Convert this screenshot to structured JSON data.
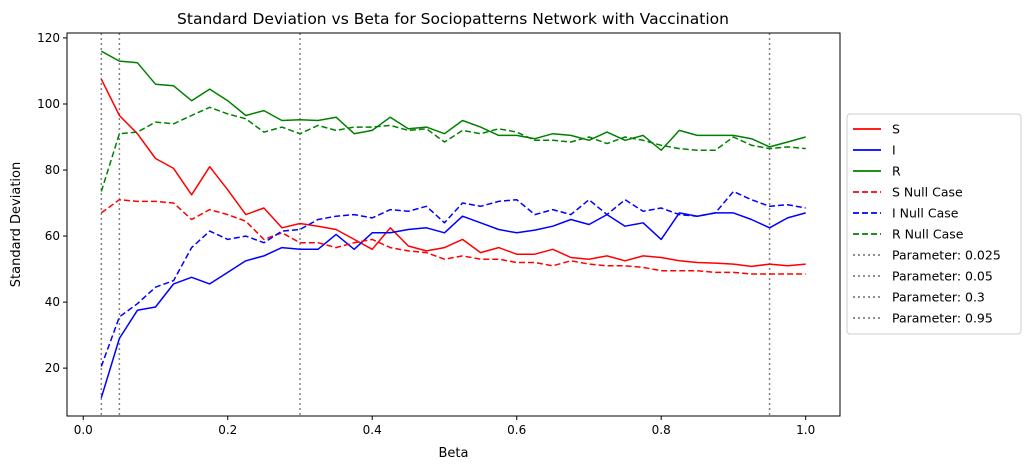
{
  "chart_data": {
    "type": "line",
    "title": "Standard Deviation vs Beta for Sociopatterns Network with Vaccination",
    "xlabel": "Beta",
    "ylabel": "Standard Deviation",
    "xlim": [
      -0.0225,
      1.0475
    ],
    "ylim": [
      5.5,
      121.5
    ],
    "xticks": [
      0.0,
      0.2,
      0.4,
      0.6,
      0.8,
      1.0
    ],
    "xtick_labels": [
      "0.0",
      "0.2",
      "0.4",
      "0.6",
      "0.8",
      "1.0"
    ],
    "yticks": [
      20,
      40,
      60,
      80,
      100,
      120
    ],
    "ytick_labels": [
      "20",
      "40",
      "60",
      "80",
      "100",
      "120"
    ],
    "grid": false,
    "legend_position": "right, outside plot",
    "x": [
      0.025,
      0.05,
      0.075,
      0.1,
      0.125,
      0.15,
      0.175,
      0.2,
      0.225,
      0.25,
      0.275,
      0.3,
      0.325,
      0.35,
      0.375,
      0.4,
      0.425,
      0.45,
      0.475,
      0.5,
      0.525,
      0.55,
      0.575,
      0.6,
      0.625,
      0.65,
      0.675,
      0.7,
      0.725,
      0.75,
      0.775,
      0.8,
      0.825,
      0.85,
      0.875,
      0.9,
      0.925,
      0.95,
      0.975,
      1.0
    ],
    "series": [
      {
        "name": "S",
        "color": "#ff0000",
        "dash": "solid",
        "values": [
          107.5,
          96.5,
          91.0,
          83.5,
          80.5,
          72.5,
          81.0,
          74.0,
          66.5,
          68.5,
          62.5,
          63.8,
          63.0,
          62.0,
          59.0,
          56.0,
          62.5,
          57.0,
          55.5,
          56.5,
          59.0,
          55.0,
          56.5,
          54.5,
          54.5,
          56.0,
          53.5,
          53.0,
          54.0,
          52.5,
          54.0,
          53.5,
          52.5,
          52.0,
          51.8,
          51.5,
          50.8,
          51.5,
          51.0,
          51.5
        ]
      },
      {
        "name": "I",
        "color": "#0000ff",
        "dash": "solid",
        "values": [
          11.0,
          29.0,
          37.5,
          38.5,
          45.5,
          47.5,
          45.5,
          49.0,
          52.5,
          54.0,
          56.5,
          56.0,
          56.0,
          60.5,
          56.0,
          61.0,
          61.0,
          62.0,
          62.5,
          61.0,
          66.0,
          64.0,
          62.0,
          61.0,
          61.8,
          63.0,
          65.0,
          63.5,
          66.5,
          63.0,
          64.0,
          59.0,
          67.0,
          66.0,
          67.0,
          67.0,
          65.0,
          62.5,
          65.5,
          67.0
        ]
      },
      {
        "name": "R",
        "color": "#008000",
        "dash": "solid",
        "values": [
          116.0,
          113.0,
          112.5,
          106.0,
          105.5,
          101.0,
          104.5,
          101.0,
          96.5,
          98.0,
          95.0,
          95.2,
          95.0,
          96.0,
          91.0,
          92.0,
          96.0,
          92.5,
          93.0,
          91.0,
          95.0,
          93.0,
          90.5,
          90.5,
          89.5,
          91.0,
          90.5,
          89.0,
          91.5,
          89.0,
          90.5,
          86.0,
          92.0,
          90.5,
          90.5,
          90.5,
          89.5,
          87.0,
          88.5,
          90.0
        ]
      },
      {
        "name": "S Null Case",
        "color": "#ff0000",
        "dash": "dashed",
        "values": [
          67.0,
          71.0,
          70.5,
          70.5,
          70.0,
          65.0,
          68.0,
          66.5,
          64.5,
          59.0,
          61.0,
          58.0,
          58.0,
          56.5,
          58.0,
          59.0,
          56.5,
          55.5,
          55.0,
          53.0,
          54.0,
          53.0,
          53.0,
          52.0,
          52.0,
          51.0,
          52.5,
          51.5,
          51.0,
          51.0,
          50.5,
          49.5,
          49.5,
          49.5,
          49.0,
          49.0,
          48.5,
          48.5,
          48.5,
          48.5
        ]
      },
      {
        "name": "I Null Case",
        "color": "#0000ff",
        "dash": "dashed",
        "values": [
          20.5,
          35.5,
          39.5,
          44.5,
          46.5,
          56.5,
          61.5,
          59.0,
          60.0,
          58.0,
          61.5,
          62.0,
          65.0,
          66.0,
          66.5,
          65.5,
          68.0,
          67.5,
          69.0,
          64.0,
          70.0,
          69.0,
          70.5,
          71.0,
          66.5,
          68.0,
          66.5,
          71.0,
          66.5,
          71.0,
          67.5,
          68.5,
          66.5,
          66.0,
          67.0,
          73.5,
          71.0,
          69.0,
          69.5,
          68.5
        ]
      },
      {
        "name": "R Null Case",
        "color": "#008000",
        "dash": "dashed",
        "values": [
          73.5,
          91.0,
          91.5,
          94.5,
          94.0,
          96.5,
          99.0,
          97.0,
          95.5,
          91.5,
          93.0,
          91.0,
          93.5,
          92.0,
          93.0,
          93.0,
          93.5,
          92.0,
          92.5,
          88.5,
          92.0,
          91.0,
          92.5,
          91.5,
          89.0,
          89.0,
          88.5,
          90.0,
          88.0,
          90.0,
          89.0,
          87.5,
          86.5,
          86.0,
          86.0,
          90.0,
          87.5,
          86.5,
          87.0,
          86.5
        ]
      }
    ],
    "vlines": [
      {
        "name": "Parameter: 0.025",
        "x": 0.025,
        "color": "#808080",
        "dash": "dotted"
      },
      {
        "name": "Parameter: 0.05",
        "x": 0.05,
        "color": "#808080",
        "dash": "dotted"
      },
      {
        "name": "Parameter: 0.3",
        "x": 0.3,
        "color": "#808080",
        "dash": "dotted"
      },
      {
        "name": "Parameter: 0.95",
        "x": 0.95,
        "color": "#808080",
        "dash": "dotted"
      }
    ]
  }
}
